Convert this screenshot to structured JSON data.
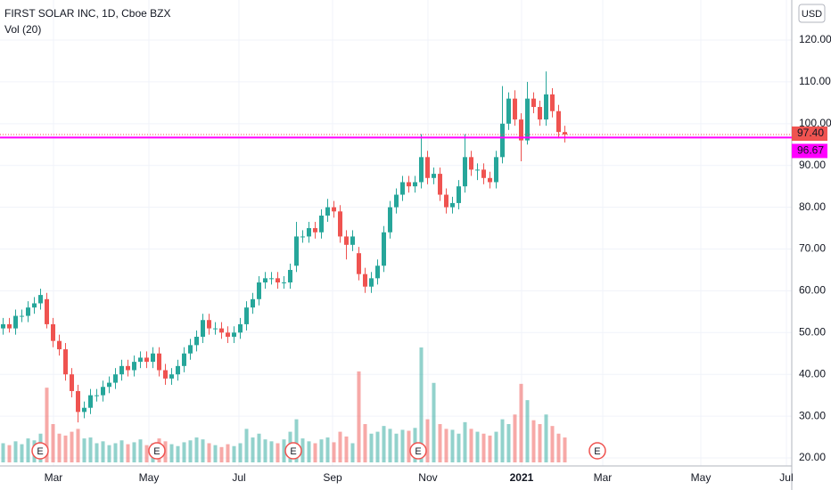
{
  "chart_data": {
    "type": "candlestick",
    "title": "FIRST SOLAR INC, 1D, Cboe BZX",
    "volume_label": "Vol (20)",
    "currency": "USD",
    "open": [
      51,
      52,
      51,
      54,
      54,
      56,
      57,
      58,
      52,
      48,
      46,
      40,
      36,
      31,
      32,
      35,
      35,
      37,
      38,
      40,
      42,
      41,
      43,
      44,
      43,
      45,
      41,
      39,
      40,
      42,
      45,
      47,
      49,
      53,
      51,
      51,
      50,
      49,
      50,
      52,
      56,
      58,
      62,
      63,
      63,
      62,
      62,
      66,
      73,
      73,
      75,
      74,
      78,
      80,
      79,
      73,
      71,
      69,
      64,
      61,
      63,
      66,
      74,
      80,
      83,
      86,
      85,
      86,
      92,
      87,
      88,
      83,
      80,
      81,
      85,
      92,
      89,
      89,
      87,
      86,
      92,
      100,
      106,
      101,
      96,
      106,
      104,
      101,
      107,
      103,
      98
    ],
    "high": [
      53.5,
      53.5,
      55.5,
      55.5,
      57.5,
      58.5,
      60.5,
      59.5,
      53.5,
      49.5,
      47.5,
      41.5,
      37.5,
      33.5,
      36.5,
      36.5,
      38.5,
      39.5,
      41.5,
      43.5,
      43.5,
      44.5,
      45.5,
      45.5,
      46.5,
      46.5,
      42.5,
      41.5,
      43.5,
      46.5,
      48.5,
      50.5,
      54.5,
      54.5,
      52.5,
      52.5,
      51.5,
      51.5,
      53.5,
      57.5,
      59.5,
      63.5,
      64.5,
      64.5,
      64.5,
      63.5,
      66.5,
      76.5,
      74.5,
      76.5,
      76.5,
      79.5,
      82,
      81.5,
      80.5,
      74.5,
      74.5,
      70.5,
      65.5,
      64.5,
      67.5,
      75.5,
      81.5,
      84.5,
      87.5,
      87.5,
      87.5,
      97.5,
      93.5,
      89.5,
      89.5,
      84.5,
      82.5,
      86.5,
      97.5,
      93.5,
      90.5,
      90.5,
      88.5,
      93.5,
      109,
      107.5,
      108,
      102.5,
      110,
      107.5,
      105.5,
      112.5,
      108.5,
      104.5,
      99.5
    ],
    "low": [
      49.5,
      50,
      49.5,
      52.5,
      52.5,
      54.5,
      55.5,
      51,
      46.5,
      44.5,
      38.5,
      34.5,
      28.5,
      29.5,
      30.5,
      33.5,
      33.5,
      35.5,
      36.5,
      38.5,
      39.5,
      39.5,
      41.5,
      41.5,
      41.5,
      39.5,
      37.5,
      37.5,
      38.5,
      40.5,
      43.5,
      45.5,
      47.5,
      49.5,
      49.5,
      48.5,
      47.5,
      47.5,
      48.5,
      50.5,
      54.5,
      56.5,
      60.5,
      61.5,
      60.5,
      60.5,
      60.5,
      64.5,
      71.5,
      71.5,
      72.5,
      72.5,
      76.5,
      77.5,
      71.5,
      67.5,
      69.5,
      62.5,
      59.5,
      59.5,
      61.5,
      64.5,
      72.5,
      78.5,
      81.5,
      83.5,
      83.5,
      84.5,
      85.5,
      85.5,
      81.5,
      78.5,
      78.5,
      79.5,
      83.5,
      87.5,
      86.5,
      85.5,
      84.5,
      84.5,
      90.5,
      98.5,
      99.5,
      91,
      95,
      102.5,
      99.5,
      99.5,
      101.5,
      96.5,
      95.5
    ],
    "close": [
      52,
      51,
      54,
      54,
      56,
      57,
      59,
      52,
      48,
      46,
      40,
      36,
      31,
      32,
      35,
      35,
      37,
      38,
      40,
      42,
      41,
      43,
      44,
      43,
      45,
      41,
      39,
      40,
      42,
      45,
      47,
      49,
      53,
      51,
      51,
      50,
      49,
      50,
      52,
      56,
      58,
      62,
      63,
      63,
      62,
      62,
      65,
      73,
      73,
      75,
      74,
      78,
      80,
      79,
      73,
      71,
      73,
      64,
      61,
      63,
      66,
      74,
      80,
      83,
      86,
      85,
      86,
      92,
      87,
      88,
      83,
      80,
      81,
      85,
      92,
      89,
      89,
      87,
      86,
      92,
      100,
      106,
      101,
      96,
      106,
      104,
      101,
      107,
      103,
      98,
      97.4
    ],
    "volume": [
      2,
      1.8,
      2.2,
      1.9,
      2.5,
      2.3,
      3,
      7.8,
      4,
      3,
      2.8,
      3.2,
      3.5,
      2.5,
      2.6,
      2,
      2.2,
      1.8,
      2,
      2.3,
      1.9,
      2.1,
      2.4,
      1.8,
      2,
      2.5,
      2.2,
      1.9,
      1.7,
      2.1,
      2.3,
      2.6,
      2.4,
      2,
      1.8,
      1.6,
      1.9,
      1.7,
      2,
      3.5,
      2.6,
      3,
      2.4,
      2.2,
      2,
      2.4,
      3.2,
      4.5,
      2.5,
      2.2,
      2,
      2.4,
      2.6,
      2.1,
      3.2,
      2.7,
      2,
      9.5,
      4,
      3,
      3.2,
      3.8,
      3.5,
      3,
      3.4,
      3.3,
      3.6,
      12,
      4.5,
      8.3,
      4,
      3.5,
      3.4,
      3,
      4.2,
      3.5,
      3.2,
      3,
      2.8,
      3.2,
      4.5,
      4,
      5,
      8.2,
      6.5,
      4.4,
      4,
      5,
      3.8,
      3,
      2.6
    ],
    "up_color": "#26a69a",
    "down_color": "#ef5350",
    "xlim": [
      0,
      126.86
    ],
    "xticks": [
      {
        "value": 8.57,
        "label": "Mar"
      },
      {
        "value": 23.86,
        "label": "May"
      },
      {
        "value": 38.29,
        "label": "Jul"
      },
      {
        "value": 53.29,
        "label": "Sep"
      },
      {
        "value": 68.57,
        "label": "Nov"
      },
      {
        "value": 83.57,
        "label": "2021"
      },
      {
        "value": 96.57,
        "label": "Mar"
      },
      {
        "value": 112.29,
        "label": "May"
      },
      {
        "value": 126,
        "label": "Jul"
      }
    ],
    "ylim": [
      18.08,
      129.6
    ],
    "yticks": [
      {
        "value": 20,
        "label": "20.00"
      },
      {
        "value": 30,
        "label": "30.00"
      },
      {
        "value": 40,
        "label": "40.00"
      },
      {
        "value": 50,
        "label": "50.00"
      },
      {
        "value": 60,
        "label": "60.00"
      },
      {
        "value": 70,
        "label": "70.00"
      },
      {
        "value": 80,
        "label": "80.00"
      },
      {
        "value": 90,
        "label": "90.00"
      },
      {
        "value": 100,
        "label": "100.00"
      },
      {
        "value": 110,
        "label": "110.00"
      },
      {
        "value": 120,
        "label": "120.00"
      }
    ],
    "volume_ylim": [
      0,
      12
    ],
    "last_price": {
      "value": 97.4,
      "label": "97.40",
      "color": "#ef5350"
    },
    "line_price": {
      "value": 96.67,
      "label": "96.67",
      "color": "#ff00ff"
    },
    "earnings": [
      {
        "x": 6.43,
        "label": "E"
      },
      {
        "x": 25.14,
        "label": "E"
      },
      {
        "x": 47,
        "label": "E"
      },
      {
        "x": 67,
        "label": "E"
      },
      {
        "x": 95.71,
        "label": "E"
      }
    ],
    "grid": true
  }
}
